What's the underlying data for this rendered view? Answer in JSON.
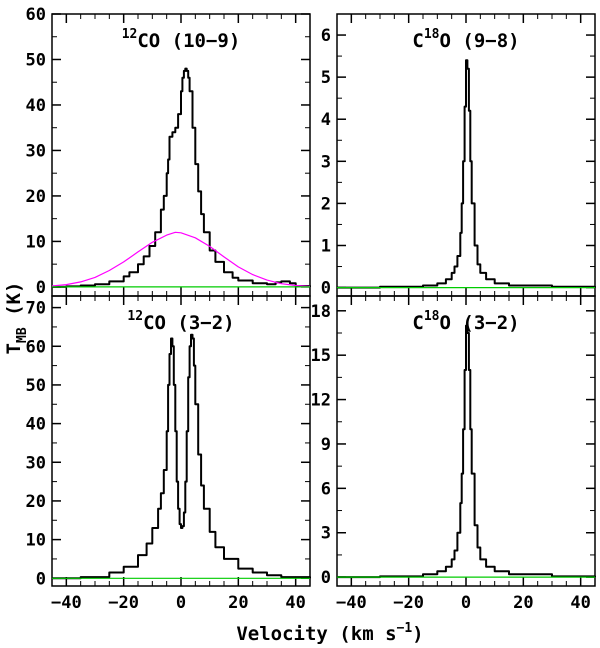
{
  "figure": {
    "ylabel_main": "T",
    "ylabel_sub": "MB",
    "ylabel_unit": " (K)",
    "xlabel_main": "Velocity (km s",
    "xlabel_sup": "−1",
    "xlabel_close": ")"
  },
  "chart_data": [
    {
      "type": "line",
      "id": "p1",
      "title_sup": "12",
      "title_main": "CO (10−9)",
      "xlim": [
        -45,
        45
      ],
      "ylim": [
        -2,
        60
      ],
      "xticks": [
        "−40",
        "−20",
        "0",
        "20",
        "40"
      ],
      "yticks": [
        0,
        10,
        20,
        30,
        40,
        50,
        60
      ],
      "show_x_tick_labels": false,
      "series": [
        {
          "name": "spectrum",
          "color": "#000000",
          "x": [
            -45,
            -40,
            -35,
            -30,
            -25,
            -20,
            -18,
            -15,
            -13,
            -11,
            -9,
            -7,
            -6,
            -5,
            -4.5,
            -4,
            -3,
            -2,
            -1,
            0,
            0.5,
            1,
            1.5,
            2,
            2.5,
            3,
            4,
            5,
            6,
            7,
            8,
            10,
            12,
            15,
            18,
            20,
            25,
            30,
            33,
            35,
            38,
            40,
            45
          ],
          "y": [
            0,
            0.1,
            0.3,
            0.6,
            1.2,
            2.3,
            3.2,
            5,
            6.7,
            9,
            12,
            17,
            20,
            25,
            28,
            33,
            34,
            35,
            38,
            43,
            46,
            47.5,
            48,
            47.5,
            46,
            43,
            35,
            27,
            21,
            16,
            12,
            8,
            5.5,
            3.2,
            2,
            1.4,
            0.8,
            0.6,
            1,
            1.2,
            0.8,
            0.2,
            0
          ]
        },
        {
          "name": "gaussian-fit",
          "color": "#ff00ff",
          "x": [
            -45,
            -40,
            -35,
            -30,
            -25,
            -20,
            -15,
            -10,
            -5,
            -2,
            0,
            5,
            10,
            15,
            20,
            25,
            30,
            35,
            40,
            45
          ],
          "y": [
            0.2,
            0.5,
            1.1,
            2.1,
            3.6,
            5.5,
            7.7,
            9.8,
            11.4,
            12,
            11.9,
            10.8,
            8.9,
            6.6,
            4.4,
            2.7,
            1.5,
            0.7,
            0.3,
            0.1
          ]
        },
        {
          "name": "baseline",
          "color": "#00cc00",
          "x": [
            -45,
            45
          ],
          "y": [
            0,
            0
          ]
        }
      ]
    },
    {
      "type": "line",
      "id": "p2",
      "title_sup": "18",
      "title_prefix": "C",
      "title_main": "O (9−8)",
      "xlim": [
        -45,
        45
      ],
      "ylim": [
        -0.2,
        6.5
      ],
      "xticks": [
        "−40",
        "−20",
        "0",
        "20",
        "40"
      ],
      "yticks": [
        0,
        1,
        2,
        3,
        4,
        5,
        6
      ],
      "show_x_tick_labels": false,
      "series": [
        {
          "name": "spectrum",
          "color": "#000000",
          "x": [
            -45,
            -30,
            -15,
            -10,
            -7,
            -5,
            -4,
            -3,
            -2,
            -1.5,
            -1,
            -0.5,
            0,
            0.5,
            1,
            1.5,
            2,
            3,
            4,
            5,
            7,
            10,
            15,
            30,
            45
          ],
          "y": [
            0,
            0.02,
            0.05,
            0.1,
            0.2,
            0.35,
            0.5,
            0.75,
            1.3,
            2,
            3,
            4.3,
            5.4,
            5.2,
            4.2,
            3,
            2,
            1,
            0.55,
            0.35,
            0.2,
            0.1,
            0.05,
            0.02,
            0
          ]
        },
        {
          "name": "baseline",
          "color": "#00cc00",
          "x": [
            -45,
            45
          ],
          "y": [
            0,
            0
          ]
        }
      ]
    },
    {
      "type": "line",
      "id": "p3",
      "title_sup": "12",
      "title_main": "CO (3−2)",
      "xlim": [
        -45,
        45
      ],
      "ylim": [
        -2,
        73
      ],
      "xticks": [
        "−40",
        "−20",
        "0",
        "20",
        "40"
      ],
      "yticks": [
        0,
        10,
        20,
        30,
        40,
        50,
        60,
        70
      ],
      "show_x_tick_labels": true,
      "series": [
        {
          "name": "spectrum",
          "color": "#000000",
          "x": [
            -45,
            -35,
            -25,
            -20,
            -15,
            -12,
            -10,
            -8,
            -7,
            -6,
            -5,
            -4.5,
            -4,
            -3.5,
            -3,
            -2.5,
            -2,
            -1.5,
            -1,
            -0.5,
            0,
            0.5,
            1,
            1.5,
            2,
            2.5,
            3,
            3.5,
            4,
            4.5,
            5,
            6,
            7,
            8,
            10,
            12,
            15,
            20,
            25,
            30,
            35,
            45
          ],
          "y": [
            0,
            0.3,
            1.5,
            3,
            6,
            9,
            13,
            18,
            22,
            28,
            38,
            50,
            58,
            62,
            60,
            50,
            38,
            25,
            18,
            14,
            13,
            13.5,
            17,
            25,
            38,
            52,
            60,
            63,
            62,
            55,
            45,
            32,
            24,
            18,
            12,
            8,
            5,
            2.5,
            1.5,
            0.8,
            0.3,
            0
          ]
        },
        {
          "name": "baseline",
          "color": "#00cc00",
          "x": [
            -45,
            45
          ],
          "y": [
            0,
            0
          ]
        }
      ]
    },
    {
      "type": "line",
      "id": "p4",
      "title_sup": "18",
      "title_prefix": "C",
      "title_main": "O (3−2)",
      "xlim": [
        -45,
        45
      ],
      "ylim": [
        -0.6,
        19
      ],
      "xticks": [
        "−40",
        "−20",
        "0",
        "20",
        "40"
      ],
      "yticks": [
        0,
        3,
        6,
        9,
        12,
        15,
        18
      ],
      "show_x_tick_labels": true,
      "series": [
        {
          "name": "spectrum",
          "color": "#000000",
          "x": [
            -45,
            -30,
            -15,
            -10,
            -7,
            -5,
            -4,
            -3,
            -2,
            -1.5,
            -1,
            -0.5,
            0,
            0.5,
            1,
            1.5,
            2,
            3,
            4,
            5,
            7,
            10,
            15,
            30,
            45
          ],
          "y": [
            0,
            0.05,
            0.2,
            0.4,
            0.7,
            1.2,
            1.8,
            3,
            5,
            7,
            10,
            14,
            17,
            16.5,
            14,
            10,
            7,
            3.5,
            2,
            1.2,
            0.7,
            0.4,
            0.2,
            0.05,
            0
          ]
        },
        {
          "name": "baseline",
          "color": "#00cc00",
          "x": [
            -45,
            45
          ],
          "y": [
            0,
            0
          ]
        }
      ]
    }
  ]
}
